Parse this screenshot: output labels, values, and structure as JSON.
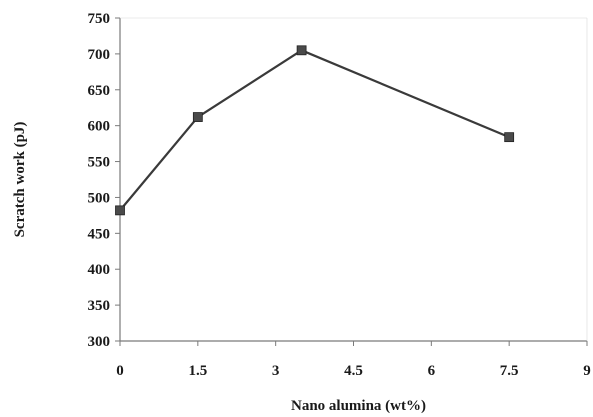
{
  "chart_data": {
    "type": "line",
    "title": "",
    "xlabel": "Nano alumina (wt%)",
    "ylabel": "Scratch work (pJ)",
    "xlim": [
      0,
      9
    ],
    "ylim": [
      300,
      750
    ],
    "x_ticks": [
      "0",
      "1.5",
      "3",
      "4.5",
      "6",
      "7.5",
      "9"
    ],
    "y_ticks": [
      "750",
      "700",
      "650",
      "600",
      "550",
      "500",
      "450",
      "400",
      "350",
      "300"
    ],
    "grid": false,
    "legend": "none",
    "series": [
      {
        "x": [
          0,
          1.5,
          3.5,
          7.5
        ],
        "y": [
          482,
          612,
          705,
          584
        ]
      }
    ],
    "colors": {
      "line": "#3a3a3a",
      "marker": "#4a4a4a",
      "axis": "#7a7a7a",
      "text": "#1a1a1a"
    }
  }
}
